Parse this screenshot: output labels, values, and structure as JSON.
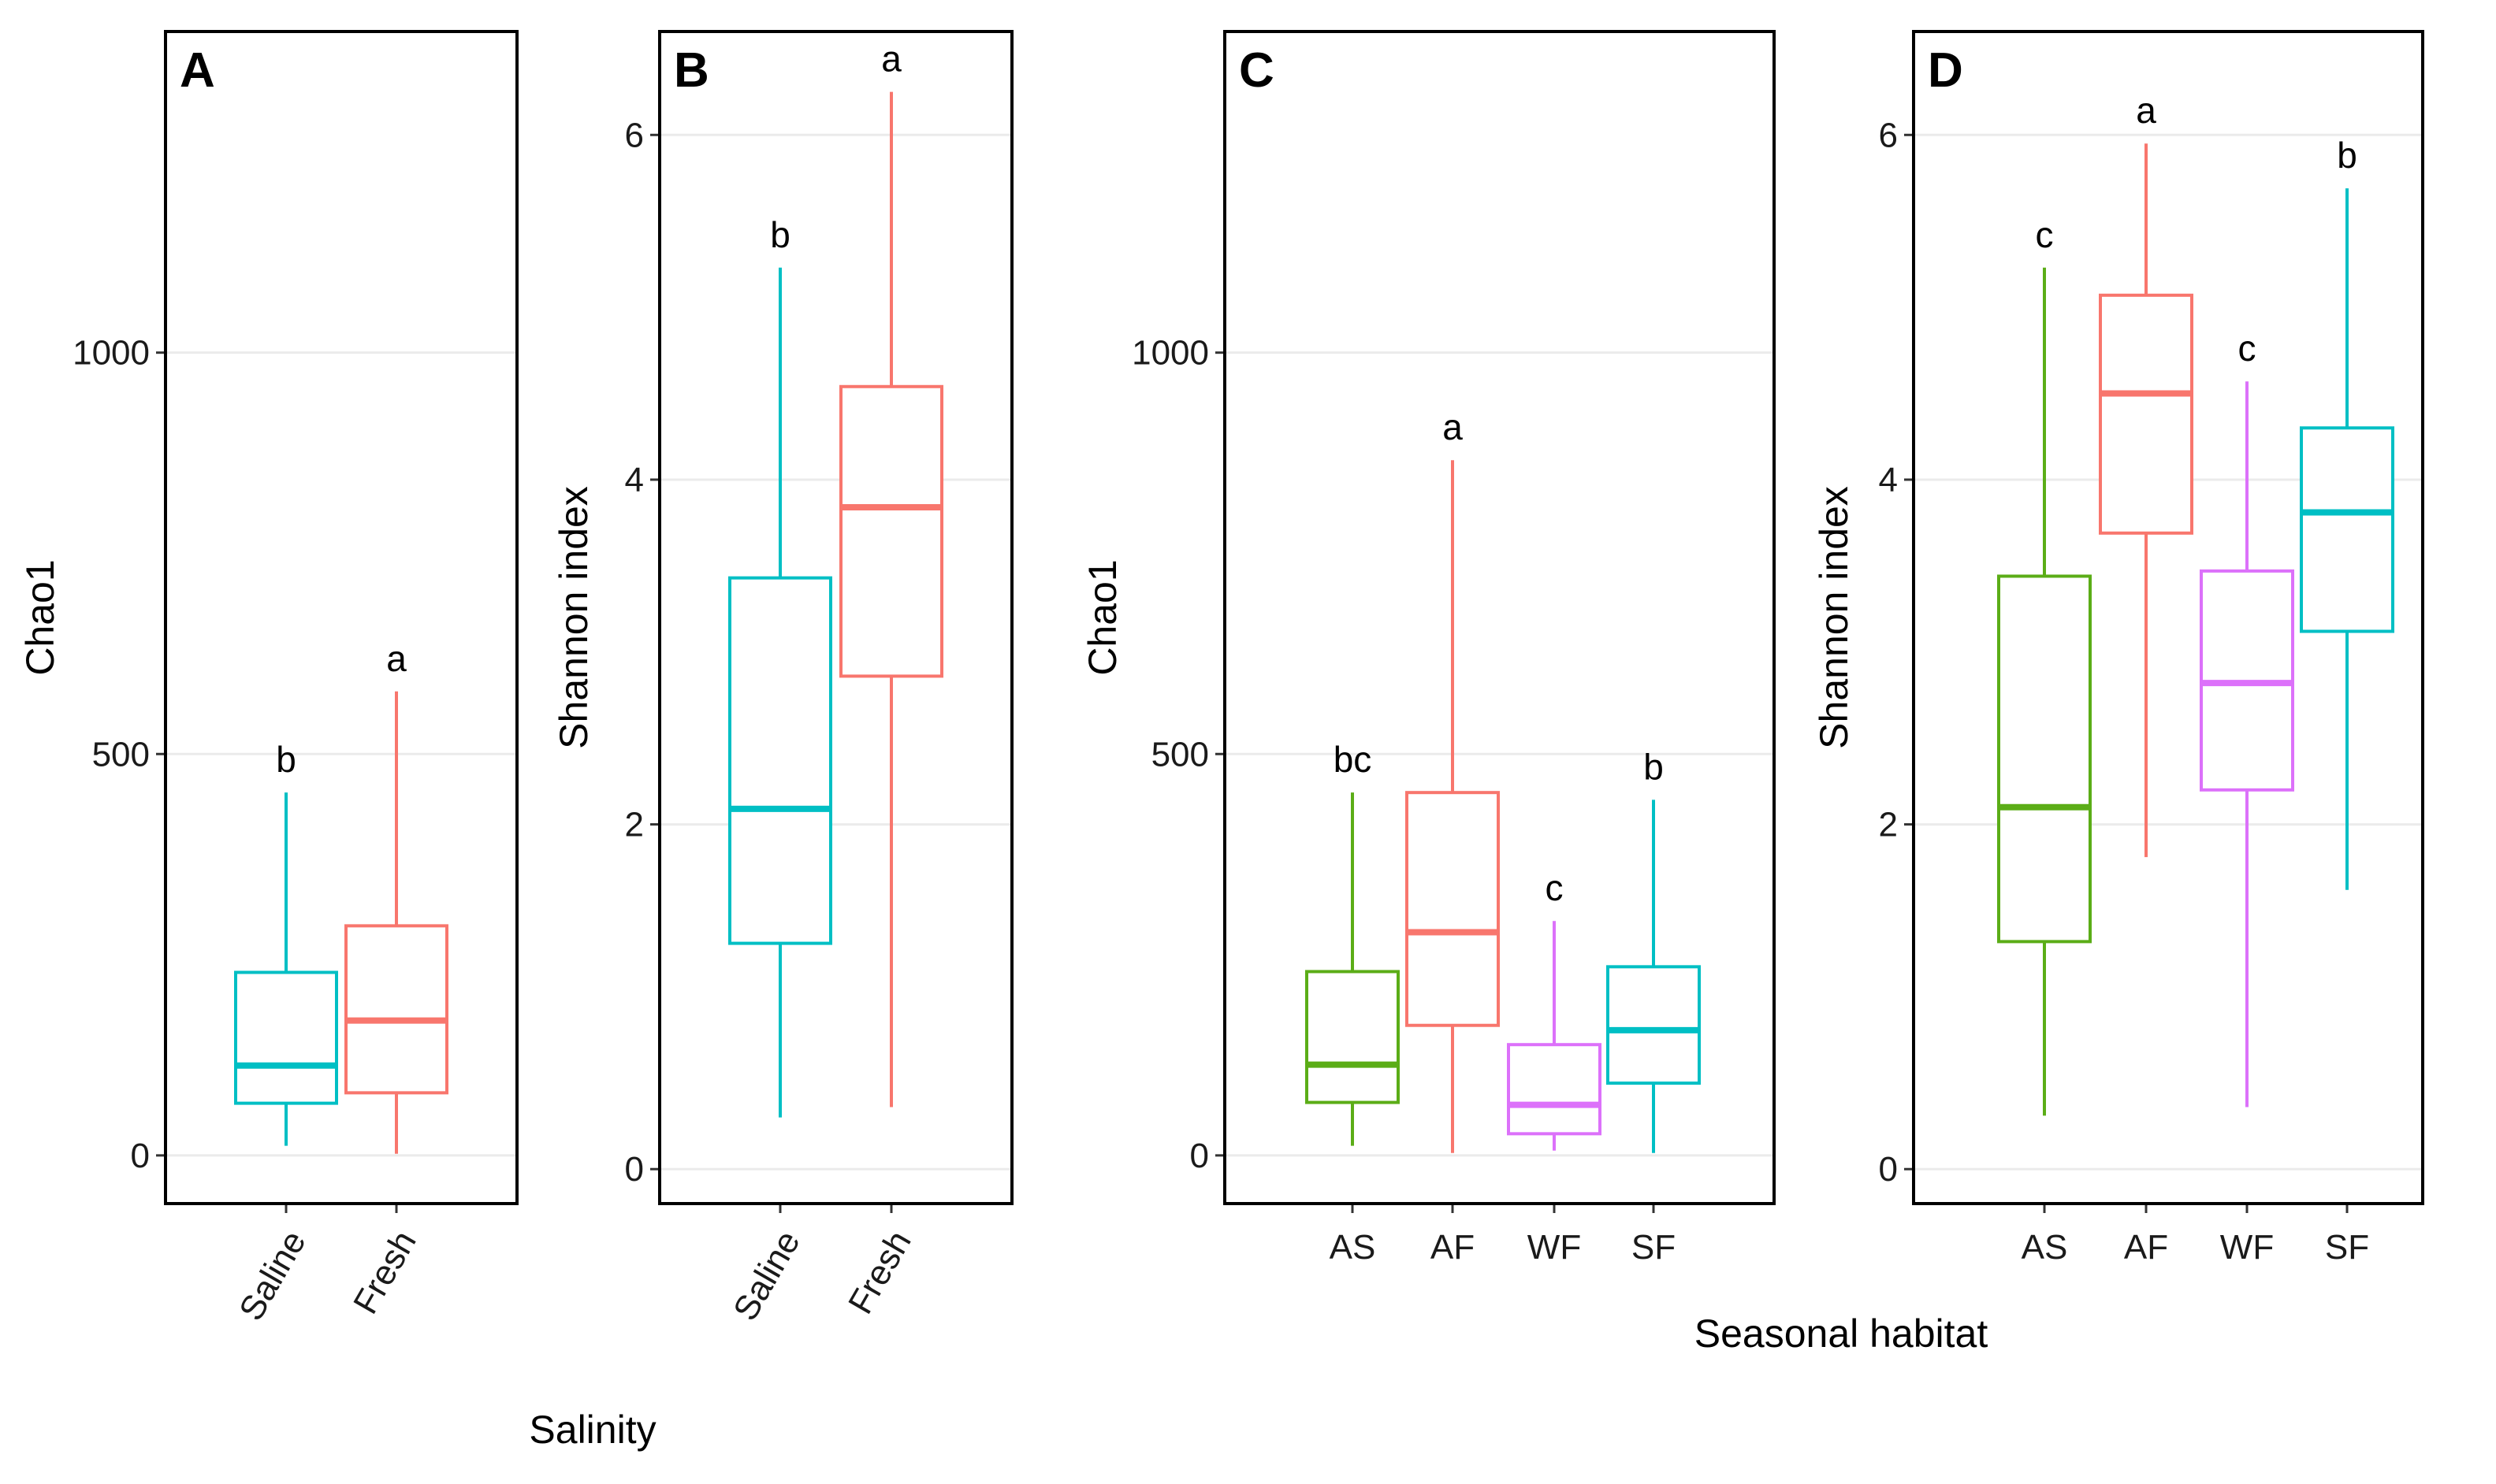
{
  "colors": {
    "saline": "#00BFC4",
    "fresh": "#F8766D",
    "AS": "#5BAD17",
    "AF": "#F8766D",
    "WF": "#DC71FA",
    "SF": "#00BFC4",
    "grid": "#EBEBEB",
    "frame": "#000000"
  },
  "group_titles": {
    "salinity": "Salinity",
    "seasonal": "Seasonal habitat"
  },
  "chart_data": [
    {
      "id": "A",
      "type": "boxplot",
      "panel_label": "A",
      "ylabel": "Chao1",
      "xlabel": "Salinity",
      "ylim": [
        -60,
        1400
      ],
      "yticks": [
        0,
        500,
        1000
      ],
      "ytick_labels": [
        "0",
        "500",
        "1000"
      ],
      "xtick_rotation": "rotated 60°",
      "categories": [
        "Saline",
        "Fresh"
      ],
      "boxes": [
        {
          "category": "Saline",
          "color_key": "saline",
          "whisker_low": 12,
          "q1": 65,
          "median": 112,
          "q3": 228,
          "whisker_high": 452,
          "letter": "b"
        },
        {
          "category": "Fresh",
          "color_key": "fresh",
          "whisker_low": 2,
          "q1": 78,
          "median": 168,
          "q3": 286,
          "whisker_high": 578,
          "letter": "a"
        }
      ]
    },
    {
      "id": "B",
      "type": "boxplot",
      "panel_label": "B",
      "ylabel": "Shannon index",
      "xlabel": "Salinity",
      "ylim": [
        -0.2,
        6.6
      ],
      "yticks": [
        0,
        2,
        4,
        6
      ],
      "ytick_labels": [
        "0",
        "2",
        "4",
        "6"
      ],
      "xtick_rotation": "rotated 60°",
      "categories": [
        "Saline",
        "Fresh"
      ],
      "boxes": [
        {
          "category": "Saline",
          "color_key": "saline",
          "whisker_low": 0.3,
          "q1": 1.31,
          "median": 2.09,
          "q3": 3.43,
          "whisker_high": 5.23,
          "letter": "b"
        },
        {
          "category": "Fresh",
          "color_key": "fresh",
          "whisker_low": 0.36,
          "q1": 2.86,
          "median": 3.84,
          "q3": 4.54,
          "whisker_high": 6.25,
          "letter": "a"
        }
      ]
    },
    {
      "id": "C",
      "type": "boxplot",
      "panel_label": "C",
      "ylabel": "Chao1",
      "xlabel": "Seasonal habitat",
      "ylim": [
        -60,
        1400
      ],
      "yticks": [
        0,
        500,
        1000
      ],
      "ytick_labels": [
        "0",
        "500",
        "1000"
      ],
      "xtick_rotation": "horizontal",
      "categories": [
        "AS",
        "AF",
        "WF",
        "SF"
      ],
      "boxes": [
        {
          "category": "AS",
          "color_key": "AS",
          "whisker_low": 12,
          "q1": 66,
          "median": 113,
          "q3": 229,
          "whisker_high": 452,
          "letter": "bc"
        },
        {
          "category": "AF",
          "color_key": "AF",
          "whisker_low": 3,
          "q1": 162,
          "median": 278,
          "q3": 452,
          "whisker_high": 866,
          "letter": "a"
        },
        {
          "category": "WF",
          "color_key": "WF",
          "whisker_low": 6,
          "q1": 27,
          "median": 63,
          "q3": 138,
          "whisker_high": 292,
          "letter": "c"
        },
        {
          "category": "SF",
          "color_key": "SF",
          "whisker_low": 3,
          "q1": 90,
          "median": 156,
          "q3": 235,
          "whisker_high": 443,
          "letter": "b"
        }
      ]
    },
    {
      "id": "D",
      "type": "boxplot",
      "panel_label": "D",
      "ylabel": "Shannon index",
      "xlabel": "Seasonal habitat",
      "ylim": [
        -0.2,
        6.6
      ],
      "yticks": [
        0,
        2,
        4,
        6
      ],
      "ytick_labels": [
        "0",
        "2",
        "4",
        "6"
      ],
      "xtick_rotation": "horizontal",
      "categories": [
        "AS",
        "AF",
        "WF",
        "SF"
      ],
      "boxes": [
        {
          "category": "AS",
          "color_key": "AS",
          "whisker_low": 0.31,
          "q1": 1.32,
          "median": 2.1,
          "q3": 3.44,
          "whisker_high": 5.23,
          "letter": "c"
        },
        {
          "category": "AF",
          "color_key": "AF",
          "whisker_low": 1.81,
          "q1": 3.69,
          "median": 4.5,
          "q3": 5.07,
          "whisker_high": 5.95,
          "letter": "a"
        },
        {
          "category": "WF",
          "color_key": "WF",
          "whisker_low": 0.36,
          "q1": 2.2,
          "median": 2.82,
          "q3": 3.47,
          "whisker_high": 4.57,
          "letter": "c"
        },
        {
          "category": "SF",
          "color_key": "SF",
          "whisker_low": 1.62,
          "q1": 3.12,
          "median": 3.81,
          "q3": 4.3,
          "whisker_high": 5.69,
          "letter": "b"
        }
      ]
    }
  ]
}
